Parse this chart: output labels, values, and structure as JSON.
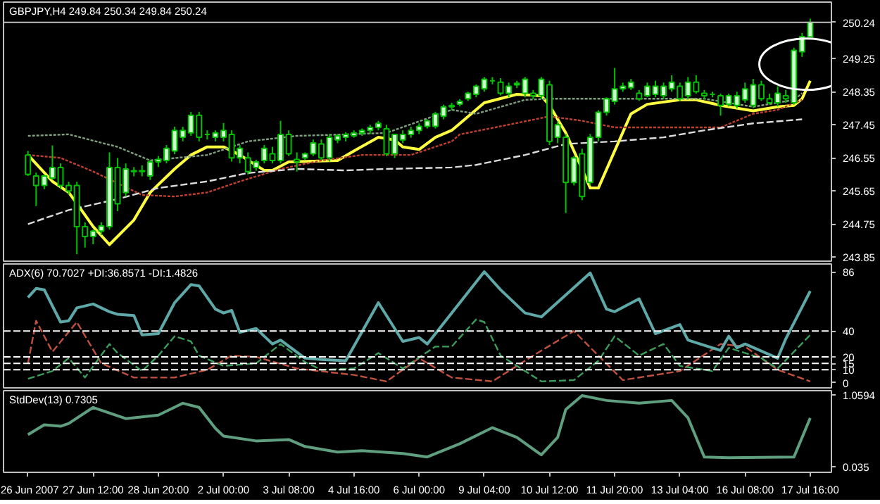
{
  "chart_data": [
    {
      "type": "candlestick",
      "title": "GBPJPY,H4  249.84 250.34 249.84 250.24",
      "color": "#00c000",
      "tick_labels": "y",
      "ohlc": [
        [
          246.63,
          246.74,
          246.06,
          246.1
        ],
        [
          246.06,
          246.15,
          245.24,
          245.8
        ],
        [
          245.8,
          246.1,
          245.7,
          246.06
        ],
        [
          246.0,
          246.89,
          245.95,
          246.29
        ],
        [
          246.29,
          246.4,
          245.7,
          245.8
        ],
        [
          245.8,
          245.9,
          245.55,
          245.65
        ],
        [
          245.8,
          245.9,
          243.93,
          244.68
        ],
        [
          244.68,
          244.8,
          244.11,
          244.41
        ],
        [
          244.41,
          244.6,
          244.2,
          244.56
        ],
        [
          244.56,
          244.8,
          244.45,
          244.7
        ],
        [
          244.68,
          246.7,
          244.6,
          246.29
        ],
        [
          246.29,
          246.55,
          245.1,
          245.3
        ],
        [
          245.61,
          246.4,
          245.5,
          246.25
        ],
        [
          246.18,
          246.3,
          246.05,
          246.2
        ],
        [
          246.2,
          246.35,
          246.05,
          246.18
        ],
        [
          246.06,
          246.5,
          245.95,
          246.44
        ],
        [
          246.44,
          246.6,
          246.3,
          246.51
        ],
        [
          246.48,
          246.9,
          246.4,
          246.81
        ],
        [
          246.74,
          247.4,
          246.65,
          247.3
        ],
        [
          247.11,
          247.4,
          247.0,
          247.3
        ],
        [
          247.23,
          247.8,
          247.15,
          247.71
        ],
        [
          247.71,
          247.8,
          247.0,
          247.11
        ],
        [
          247.19,
          247.3,
          247.05,
          247.19
        ],
        [
          247.11,
          247.3,
          247.0,
          247.23
        ],
        [
          247.11,
          247.5,
          247.0,
          247.3
        ],
        [
          247.19,
          247.3,
          246.45,
          246.55
        ],
        [
          246.55,
          246.9,
          246.4,
          246.81
        ],
        [
          246.55,
          246.7,
          246.1,
          246.18
        ],
        [
          246.29,
          246.5,
          246.2,
          246.44
        ],
        [
          246.48,
          246.9,
          246.4,
          246.81
        ],
        [
          246.66,
          246.85,
          246.4,
          246.48
        ],
        [
          246.48,
          247.56,
          246.4,
          247.19
        ],
        [
          247.19,
          247.3,
          246.6,
          246.66
        ],
        [
          246.51,
          246.7,
          246.18,
          246.44
        ],
        [
          246.55,
          246.7,
          246.5,
          246.66
        ],
        [
          246.66,
          247.05,
          246.6,
          246.96
        ],
        [
          246.93,
          247.05,
          246.5,
          246.55
        ],
        [
          246.55,
          247.2,
          246.45,
          247.11
        ],
        [
          247.04,
          247.2,
          246.95,
          247.15
        ],
        [
          247.11,
          247.25,
          247.0,
          247.19
        ],
        [
          247.15,
          247.3,
          247.1,
          247.23
        ],
        [
          247.23,
          247.35,
          247.15,
          247.3
        ],
        [
          247.3,
          247.45,
          247.2,
          247.38
        ],
        [
          247.38,
          247.56,
          247.3,
          247.49
        ],
        [
          247.34,
          247.45,
          246.6,
          246.66
        ],
        [
          246.66,
          247.19,
          246.55,
          247.19
        ],
        [
          247.04,
          247.3,
          246.95,
          247.19
        ],
        [
          247.19,
          247.4,
          247.1,
          247.3
        ],
        [
          247.3,
          247.49,
          247.2,
          247.41
        ],
        [
          247.41,
          247.6,
          247.35,
          247.56
        ],
        [
          247.41,
          247.8,
          247.35,
          247.75
        ],
        [
          247.68,
          248.0,
          247.6,
          247.94
        ],
        [
          247.94,
          248.05,
          247.85,
          247.98
        ],
        [
          248.01,
          248.15,
          247.95,
          248.09
        ],
        [
          248.16,
          248.35,
          248.1,
          248.31
        ],
        [
          248.28,
          248.55,
          248.2,
          248.5
        ],
        [
          248.43,
          248.75,
          248.35,
          248.69
        ],
        [
          248.65,
          248.75,
          248.55,
          248.65
        ],
        [
          248.61,
          248.72,
          248.25,
          248.31
        ],
        [
          248.31,
          248.6,
          248.2,
          248.5
        ],
        [
          248.54,
          248.65,
          248.45,
          248.58
        ],
        [
          248.31,
          248.75,
          248.2,
          248.69
        ],
        [
          248.31,
          248.4,
          248.15,
          248.24
        ],
        [
          248.24,
          248.75,
          248.15,
          248.69
        ],
        [
          248.54,
          248.65,
          246.9,
          247.0
        ],
        [
          247.11,
          247.55,
          246.95,
          247.45
        ],
        [
          247.11,
          247.2,
          245.05,
          245.88
        ],
        [
          245.88,
          246.6,
          245.8,
          246.55
        ],
        [
          246.66,
          246.8,
          245.4,
          245.5
        ],
        [
          245.88,
          247.2,
          245.8,
          247.11
        ],
        [
          247.11,
          247.85,
          247.0,
          247.79
        ],
        [
          247.79,
          248.2,
          247.7,
          248.16
        ],
        [
          248.09,
          249.0,
          248.0,
          248.43
        ],
        [
          248.43,
          248.6,
          248.35,
          248.5
        ],
        [
          248.46,
          248.7,
          248.4,
          248.61
        ],
        [
          248.31,
          248.4,
          248.1,
          248.16
        ],
        [
          248.24,
          248.6,
          248.2,
          248.5
        ],
        [
          248.28,
          248.65,
          248.2,
          248.5
        ],
        [
          248.24,
          248.6,
          248.15,
          248.5
        ],
        [
          248.43,
          248.8,
          248.35,
          248.61
        ],
        [
          248.5,
          248.6,
          248.1,
          248.16
        ],
        [
          248.24,
          248.75,
          248.15,
          248.61
        ],
        [
          248.61,
          248.8,
          248.3,
          248.35
        ],
        [
          248.31,
          248.4,
          248.15,
          248.24
        ],
        [
          248.28,
          248.35,
          248.2,
          248.28
        ],
        [
          248.24,
          248.3,
          247.7,
          247.98
        ],
        [
          248.01,
          248.3,
          247.95,
          248.24
        ],
        [
          247.98,
          248.35,
          247.9,
          248.24
        ],
        [
          248.13,
          248.6,
          248.05,
          248.43
        ],
        [
          247.98,
          248.7,
          247.9,
          248.54
        ],
        [
          248.54,
          248.65,
          248.1,
          248.16
        ],
        [
          248.16,
          248.3,
          248.0,
          248.05
        ],
        [
          248.05,
          248.5,
          247.95,
          248.31
        ],
        [
          248.24,
          248.4,
          248.05,
          248.16
        ],
        [
          248.05,
          249.55,
          248.0,
          249.48
        ],
        [
          249.44,
          249.95,
          249.3,
          249.85
        ],
        [
          249.84,
          250.34,
          249.84,
          250.24
        ]
      ],
      "ylim": [
        243.74,
        250.79
      ],
      "yticks": [
        {
          "value": 250.24,
          "label": "250.24"
        },
        249.25,
        248.35,
        247.45,
        246.55,
        245.65,
        244.75,
        243.85
      ],
      "ref_lines": [
        {
          "axis": "y",
          "value": 250.24,
          "color": "#c0c0c0"
        }
      ],
      "series": [
        {
          "type": "line",
          "color": "#dcdcdc",
          "line_style": "dashed",
          "values": [
            244.75,
            null,
            null,
            null,
            null,
            245.13,
            null,
            null,
            null,
            null,
            null,
            245.43,
            null,
            null,
            null,
            null,
            245.73,
            null,
            null,
            null,
            null,
            null,
            245.91,
            null,
            null,
            null,
            null,
            246.14,
            null,
            null,
            null,
            null,
            null,
            246.25,
            null,
            null,
            null,
            null,
            null,
            246.21,
            null,
            null,
            null,
            null,
            246.25,
            null,
            null,
            null,
            null,
            null,
            null,
            null,
            246.29,
            null,
            null,
            246.36,
            null,
            null,
            null,
            null,
            null,
            246.63,
            null,
            null,
            null,
            null,
            246.93,
            null,
            null,
            null,
            null,
            null,
            247.0,
            null,
            null,
            null,
            null,
            null,
            247.11,
            null,
            null,
            null,
            null,
            247.3,
            null,
            null,
            null,
            null,
            null,
            247.49,
            null,
            null,
            null,
            null,
            null,
            247.6,
            null
          ]
        },
        {
          "type": "line",
          "color": "#c04030",
          "line_style": "dotted",
          "values": [
            246.63,
            null,
            null,
            null,
            246.55,
            null,
            null,
            null,
            246.18,
            null,
            null,
            null,
            null,
            null,
            245.54,
            null,
            null,
            null,
            245.5,
            null,
            null,
            null,
            245.61,
            null,
            null,
            null,
            245.91,
            null,
            null,
            null,
            null,
            246.25,
            null,
            null,
            null,
            null,
            246.48,
            null,
            null,
            null,
            null,
            246.63,
            null,
            null,
            null,
            null,
            null,
            246.63,
            null,
            null,
            null,
            null,
            247.0,
            247.19,
            null,
            null,
            null,
            null,
            247.41,
            null,
            null,
            null,
            null,
            null,
            247.68,
            null,
            null,
            null,
            247.56,
            null,
            null,
            null,
            247.38,
            null,
            null,
            null,
            null,
            null,
            247.38,
            null,
            null,
            null,
            null,
            null,
            null,
            247.38,
            null,
            null,
            null,
            247.75,
            null,
            null,
            247.86,
            null,
            null,
            248.13,
            null
          ]
        },
        {
          "type": "line",
          "color": "#80a080",
          "line_style": "dotted",
          "values": [
            247.15,
            null,
            null,
            null,
            null,
            247.19,
            null,
            null,
            null,
            null,
            null,
            246.85,
            null,
            null,
            null,
            246.48,
            null,
            null,
            null,
            null,
            null,
            null,
            246.63,
            null,
            null,
            null,
            null,
            247.0,
            null,
            null,
            null,
            null,
            null,
            247.15,
            null,
            null,
            null,
            null,
            null,
            247.19,
            null,
            null,
            null,
            null,
            247.23,
            null,
            null,
            null,
            null,
            null,
            null,
            null,
            247.86,
            null,
            null,
            247.75,
            null,
            null,
            null,
            null,
            null,
            248.13,
            null,
            null,
            248.16,
            null,
            null,
            null,
            null,
            null,
            null,
            null,
            248.16,
            null,
            null,
            null,
            null,
            null,
            null,
            null,
            null,
            null,
            null,
            248.16,
            null,
            null,
            null,
            null,
            null,
            247.94,
            null,
            null,
            null,
            null,
            248.13,
            248.31,
            null
          ]
        },
        {
          "type": "line",
          "color": "#ffff40",
          "line_style": "solid",
          "values": [
            246.63,
            null,
            null,
            245.91,
            null,
            245.61,
            245.31,
            null,
            244.68,
            null,
            244.19,
            null,
            null,
            244.86,
            null,
            245.61,
            null,
            null,
            246.25,
            null,
            246.63,
            null,
            246.85,
            null,
            246.85,
            null,
            246.63,
            null,
            null,
            246.21,
            246.21,
            null,
            246.44,
            null,
            null,
            null,
            null,
            null,
            246.48,
            null,
            246.74,
            null,
            null,
            247.11,
            null,
            247.04,
            246.85,
            null,
            246.78,
            null,
            247.11,
            null,
            247.3,
            null,
            null,
            null,
            248.05,
            null,
            null,
            null,
            248.28,
            null,
            null,
            248.24,
            247.98,
            null,
            247.23,
            null,
            246.25,
            245.73,
            245.73,
            null,
            246.74,
            null,
            247.75,
            null,
            248.01,
            null,
            null,
            null,
            248.13,
            null,
            248.13,
            null,
            null,
            247.98,
            null,
            null,
            null,
            247.83,
            null,
            null,
            247.94,
            null,
            247.98,
            248.16,
            248.65
          ]
        }
      ]
    },
    {
      "type": "line",
      "title": "ADX(6) 70.7027 +DI:36.8571 -DI:1.4826",
      "tick_labels": "y",
      "ylim": [
        -4,
        92
      ],
      "yticks": [
        86,
        40,
        20,
        15,
        10,
        0
      ],
      "ref_lines": [
        {
          "axis": "y",
          "value": 40,
          "color": "#ffffff",
          "line_style": "dashed"
        },
        {
          "axis": "y",
          "value": 20,
          "color": "#ffffff",
          "line_style": "dashed"
        },
        {
          "axis": "y",
          "value": 15,
          "color": "#ffffff",
          "line_style": "dashed"
        },
        {
          "axis": "y",
          "value": 10,
          "color": "#ffffff",
          "line_style": "dashed"
        }
      ],
      "series": [
        {
          "color": "#5fa8a8",
          "line_style": "solid",
          "values": [
            66,
            73,
            72,
            null,
            47,
            48,
            58,
            null,
            61,
            null,
            55,
            53,
            null,
            52,
            37,
            null,
            38,
            null,
            62,
            null,
            76,
            75,
            null,
            57,
            54,
            56,
            39,
            null,
            42,
            null,
            30,
            33,
            null,
            null,
            19,
            null,
            18,
            null,
            null,
            17,
            null,
            null,
            null,
            62,
            null,
            null,
            32,
            null,
            35,
            30,
            null,
            null,
            null,
            null,
            null,
            null,
            86,
            null,
            72,
            null,
            null,
            54,
            null,
            51,
            null,
            null,
            null,
            null,
            null,
            85,
            null,
            57,
            55,
            null,
            null,
            65,
            null,
            38,
            null,
            null,
            45,
            33,
            31,
            null,
            null,
            25,
            36,
            27,
            30,
            null,
            null,
            null,
            19,
            34,
            null,
            null,
            71
          ]
        },
        {
          "color": "#3c9c5c",
          "line_style": "dashed",
          "values": [
            3,
            null,
            null,
            9,
            null,
            19,
            null,
            4,
            null,
            null,
            30,
            23,
            null,
            null,
            9,
            null,
            21,
            null,
            36,
            null,
            32,
            21,
            null,
            null,
            13,
            null,
            null,
            null,
            15,
            null,
            null,
            30,
            null,
            null,
            16,
            null,
            10,
            null,
            null,
            null,
            11,
            null,
            null,
            23,
            null,
            null,
            11,
            null,
            null,
            null,
            28,
            null,
            28,
            null,
            null,
            49,
            47,
            null,
            21,
            null,
            null,
            null,
            null,
            1,
            null,
            null,
            null,
            2,
            null,
            null,
            17,
            null,
            36,
            null,
            null,
            21,
            null,
            null,
            30,
            null,
            13,
            null,
            null,
            null,
            9,
            null,
            27,
            null,
            null,
            null,
            19,
            null,
            11,
            null,
            null,
            null,
            37
          ]
        },
        {
          "color": "#c05040",
          "line_style": "dashed",
          "values": [
            15,
            48,
            null,
            24,
            null,
            null,
            47,
            null,
            null,
            15,
            null,
            null,
            null,
            4,
            null,
            null,
            null,
            null,
            4,
            null,
            null,
            null,
            10,
            null,
            null,
            21,
            null,
            null,
            20,
            null,
            null,
            null,
            null,
            11,
            null,
            null,
            null,
            null,
            null,
            null,
            6,
            null,
            null,
            null,
            1,
            null,
            null,
            null,
            19,
            null,
            null,
            null,
            4,
            null,
            null,
            null,
            null,
            1,
            null,
            null,
            null,
            null,
            21,
            null,
            null,
            null,
            null,
            40,
            null,
            null,
            21,
            null,
            null,
            2,
            null,
            null,
            null,
            null,
            null,
            null,
            9,
            null,
            null,
            null,
            null,
            30,
            null,
            null,
            28,
            null,
            null,
            null,
            10,
            null,
            null,
            null,
            1
          ]
        }
      ]
    },
    {
      "type": "line",
      "title": "StdDev(13) 0.7305",
      "categories": [
        "26 Jun 2007",
        null,
        null,
        null,
        null,
        null,
        null,
        null,
        "27 Jun 12:00",
        null,
        null,
        null,
        null,
        null,
        null,
        null,
        "28 Jun 20:00",
        null,
        null,
        null,
        null,
        null,
        null,
        null,
        "2 Jul 00:00",
        null,
        null,
        null,
        null,
        null,
        null,
        null,
        "3 Jul 08:00",
        null,
        null,
        null,
        null,
        null,
        null,
        null,
        "4 Jul 16:00",
        null,
        null,
        null,
        null,
        null,
        null,
        null,
        "6 Jul 00:00",
        null,
        null,
        null,
        null,
        null,
        null,
        null,
        "9 Jul 04:00",
        null,
        null,
        null,
        null,
        null,
        null,
        null,
        "10 Jul 12:00",
        null,
        null,
        null,
        null,
        null,
        null,
        null,
        "11 Jul 20:00",
        null,
        null,
        null,
        null,
        null,
        null,
        null,
        "13 Jul 04:00",
        null,
        null,
        null,
        null,
        null,
        null,
        null,
        "16 Jul 08:00",
        null,
        null,
        null,
        null,
        null,
        null,
        null,
        "17 Jul 16:00"
      ],
      "ylim": [
        -0.05,
        1.12
      ],
      "yticks": [
        1.0594,
        0.035
      ],
      "series": [
        {
          "color": "#5f9f7f",
          "line_style": "solid",
          "values": [
            0.49,
            null,
            0.63,
            null,
            0.61,
            0.65,
            null,
            null,
            0.88,
            null,
            null,
            null,
            0.72,
            null,
            null,
            null,
            0.77,
            null,
            null,
            0.94,
            null,
            0.88,
            null,
            0.58,
            0.47,
            null,
            null,
            null,
            0.4,
            null,
            null,
            null,
            0.42,
            null,
            0.32,
            null,
            null,
            null,
            0.24,
            null,
            null,
            0.26,
            null,
            null,
            null,
            null,
            0.22,
            null,
            null,
            0.17,
            null,
            null,
            null,
            0.36,
            null,
            null,
            null,
            0.59,
            null,
            null,
            0.45,
            null,
            null,
            0.2,
            null,
            0.45,
            0.85,
            null,
            1.05,
            null,
            null,
            0.98,
            null,
            null,
            null,
            0.94,
            null,
            null,
            null,
            0.98,
            null,
            0.73,
            null,
            0.17,
            null,
            null,
            0.16,
            null,
            null,
            null,
            null,
            null,
            null,
            null,
            0.17,
            null,
            0.73
          ]
        }
      ]
    }
  ]
}
